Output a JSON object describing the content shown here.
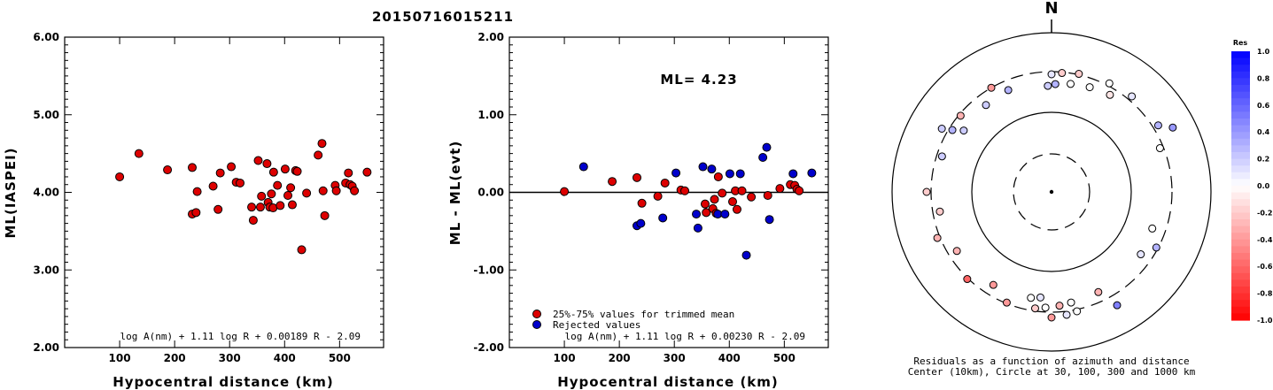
{
  "page_title": "20150716015211",
  "chart_data": [
    {
      "type": "scatter",
      "name": "ml-vs-distance",
      "ylabel": "ML(IASPEI)",
      "xlabel": "Hypocentral distance (km)",
      "xlim": [
        0,
        580
      ],
      "ylim": [
        2.0,
        6.0
      ],
      "xticks": [
        "100",
        "200",
        "300",
        "400",
        "500"
      ],
      "yticks": [
        "2.00",
        "3.00",
        "4.00",
        "5.00",
        "6.00"
      ],
      "formula": "log A(nm) + 1.11 log R + 0.00189 R - 2.09",
      "points": [
        [
          100,
          4.2
        ],
        [
          135,
          4.5
        ],
        [
          187,
          4.29
        ],
        [
          232,
          4.32
        ],
        [
          232,
          3.72
        ],
        [
          239,
          3.74
        ],
        [
          241,
          4.01
        ],
        [
          270,
          4.08
        ],
        [
          279,
          3.78
        ],
        [
          283,
          4.25
        ],
        [
          303,
          4.33
        ],
        [
          312,
          4.13
        ],
        [
          319,
          4.12
        ],
        [
          340,
          3.81
        ],
        [
          343,
          3.64
        ],
        [
          352,
          4.41
        ],
        [
          356,
          3.81
        ],
        [
          358,
          3.95
        ],
        [
          368,
          4.37
        ],
        [
          370,
          3.87
        ],
        [
          373,
          3.81
        ],
        [
          376,
          3.98
        ],
        [
          379,
          3.8
        ],
        [
          380,
          4.26
        ],
        [
          387,
          4.09
        ],
        [
          392,
          3.83
        ],
        [
          401,
          4.3
        ],
        [
          406,
          3.96
        ],
        [
          411,
          4.06
        ],
        [
          414,
          3.84
        ],
        [
          420,
          4.28
        ],
        [
          423,
          4.27
        ],
        [
          431,
          3.26
        ],
        [
          440,
          3.99
        ],
        [
          461,
          4.48
        ],
        [
          468,
          4.63
        ],
        [
          470,
          4.02
        ],
        [
          473,
          3.7
        ],
        [
          492,
          4.09
        ],
        [
          494,
          4.02
        ],
        [
          511,
          4.12
        ],
        [
          516,
          4.25
        ],
        [
          519,
          4.1
        ],
        [
          523,
          4.08
        ],
        [
          527,
          4.02
        ],
        [
          550,
          4.26
        ]
      ]
    },
    {
      "type": "scatter",
      "name": "residual-vs-distance",
      "ylabel": "ML - ML(evt)",
      "xlabel": "Hypocentral distance (km)",
      "xlim": [
        0,
        580
      ],
      "ylim": [
        -2.0,
        2.0
      ],
      "xticks": [
        "100",
        "200",
        "300",
        "400",
        "500"
      ],
      "yticks": [
        "-2.00",
        "-1.00",
        "0.00",
        "1.00",
        "2.00"
      ],
      "annotation": "ML= 4.23",
      "legend": [
        "25%-75% values for trimmed mean",
        "Rejected values"
      ],
      "formula": "log A(nm) + 1.11 log R + 0.00230 R - 2.09",
      "series": [
        {
          "name": "25%-75% values for trimmed mean",
          "color": "#dd0000",
          "points": [
            [
              100,
              0.01
            ],
            [
              187,
              0.14
            ],
            [
              232,
              0.19
            ],
            [
              241,
              -0.14
            ],
            [
              270,
              -0.05
            ],
            [
              283,
              0.12
            ],
            [
              312,
              0.03
            ],
            [
              319,
              0.02
            ],
            [
              356,
              -0.15
            ],
            [
              358,
              -0.26
            ],
            [
              370,
              -0.21
            ],
            [
              373,
              -0.09
            ],
            [
              376,
              -0.27
            ],
            [
              380,
              0.2
            ],
            [
              387,
              -0.01
            ],
            [
              406,
              -0.12
            ],
            [
              411,
              0.02
            ],
            [
              414,
              -0.22
            ],
            [
              423,
              0.02
            ],
            [
              440,
              -0.06
            ],
            [
              470,
              -0.04
            ],
            [
              492,
              0.05
            ],
            [
              511,
              0.1
            ],
            [
              519,
              0.09
            ],
            [
              523,
              0.04
            ],
            [
              527,
              0.02
            ]
          ]
        },
        {
          "name": "Rejected values",
          "color": "#0000cc",
          "points": [
            [
              135,
              0.33
            ],
            [
              232,
              -0.43
            ],
            [
              239,
              -0.4
            ],
            [
              279,
              -0.33
            ],
            [
              303,
              0.25
            ],
            [
              340,
              -0.28
            ],
            [
              343,
              -0.46
            ],
            [
              352,
              0.33
            ],
            [
              368,
              0.3
            ],
            [
              379,
              -0.28
            ],
            [
              392,
              -0.28
            ],
            [
              401,
              0.24
            ],
            [
              420,
              0.24
            ],
            [
              431,
              -0.81
            ],
            [
              461,
              0.45
            ],
            [
              468,
              0.58
            ],
            [
              473,
              -0.35
            ],
            [
              516,
              0.24
            ],
            [
              550,
              0.25
            ]
          ]
        }
      ]
    },
    {
      "type": "scatter",
      "name": "azimuth-distance-residuals",
      "north_label": "N",
      "caption_line1": "Residuals as a function of azimuth and distance",
      "caption_line2": "Center (10km), Circle at 30, 100, 300 and 1000 km",
      "colorbar_title": "Res",
      "colorbar_ticks": [
        "1.0",
        "0.8",
        "0.6",
        "0.4",
        "0.2",
        "0.0",
        "-0.2",
        "-0.4",
        "-0.6",
        "-0.8",
        "-1.0"
      ],
      "stations_az_res": [
        [
          -2,
          0.2
        ],
        [
          0,
          0.1
        ],
        [
          2,
          0.3
        ],
        [
          5,
          -0.2
        ],
        [
          10,
          0.0
        ],
        [
          13,
          -0.2
        ],
        [
          20,
          0.0
        ],
        [
          28,
          0.0
        ],
        [
          31,
          -0.1
        ],
        [
          40,
          0.1
        ],
        [
          58,
          0.3
        ],
        [
          62,
          0.4
        ],
        [
          68,
          0.0
        ],
        [
          110,
          0.0
        ],
        [
          118,
          0.3
        ],
        [
          125,
          0.1
        ],
        [
          150,
          0.5
        ],
        [
          155,
          -0.3
        ],
        [
          168,
          0.0
        ],
        [
          170,
          0.0
        ],
        [
          173,
          0.1
        ],
        [
          176,
          -0.3
        ],
        [
          180,
          -0.4
        ],
        [
          183,
          0.0
        ],
        [
          186,
          0.1
        ],
        [
          188,
          -0.2
        ],
        [
          191,
          0.0
        ],
        [
          202,
          -0.4
        ],
        [
          212,
          -0.4
        ],
        [
          224,
          -0.6
        ],
        [
          238,
          -0.3
        ],
        [
          248,
          -0.3
        ],
        [
          260,
          -0.2
        ],
        [
          270,
          -0.2
        ],
        [
          288,
          0.2
        ],
        [
          300,
          0.2
        ],
        [
          302,
          0.3
        ],
        [
          305,
          0.2
        ],
        [
          310,
          -0.3
        ],
        [
          323,
          0.2
        ],
        [
          330,
          -0.4
        ],
        [
          337,
          0.3
        ]
      ]
    }
  ]
}
